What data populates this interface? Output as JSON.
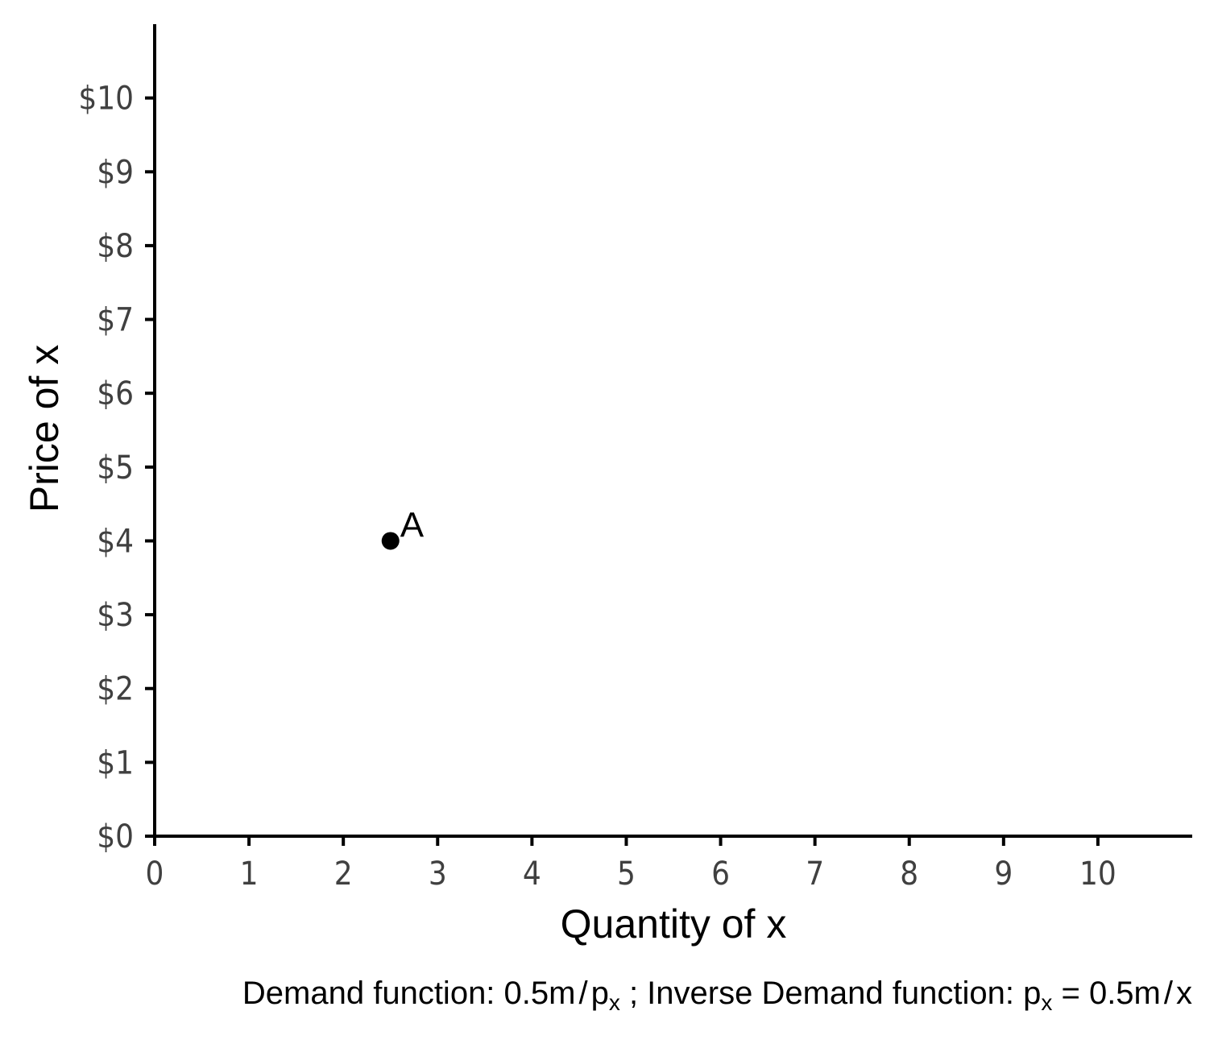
{
  "chart_data": {
    "type": "scatter",
    "xlabel": "Quantity of x",
    "ylabel": "Price of x",
    "xlim": [
      0,
      11
    ],
    "ylim": [
      0,
      11
    ],
    "x_ticks": [
      0,
      1,
      2,
      3,
      4,
      5,
      6,
      7,
      8,
      9,
      10
    ],
    "x_tick_labels": [
      "0",
      "1",
      "2",
      "3",
      "4",
      "5",
      "6",
      "7",
      "8",
      "9",
      "10"
    ],
    "y_ticks": [
      0,
      1,
      2,
      3,
      4,
      5,
      6,
      7,
      8,
      9,
      10
    ],
    "y_tick_labels": [
      "$0",
      "$1",
      "$2",
      "$3",
      "$4",
      "$5",
      "$6",
      "$7",
      "$8",
      "$9",
      "$10"
    ],
    "grid": false,
    "points": [
      {
        "x": 2.5,
        "y": 4,
        "label": "A"
      }
    ],
    "caption": {
      "part1": "Demand function: 0.5m",
      "slash1": "/",
      "p1": "p",
      "sub1": "x",
      "part2": " ; Inverse Demand function: ",
      "p2": "p",
      "sub2": "x",
      "part3": " = 0.5m",
      "slash2": "/",
      "part4": "x"
    },
    "colors": {
      "axis": "#000000",
      "tick_text": "#404040",
      "point": "#000000"
    }
  }
}
